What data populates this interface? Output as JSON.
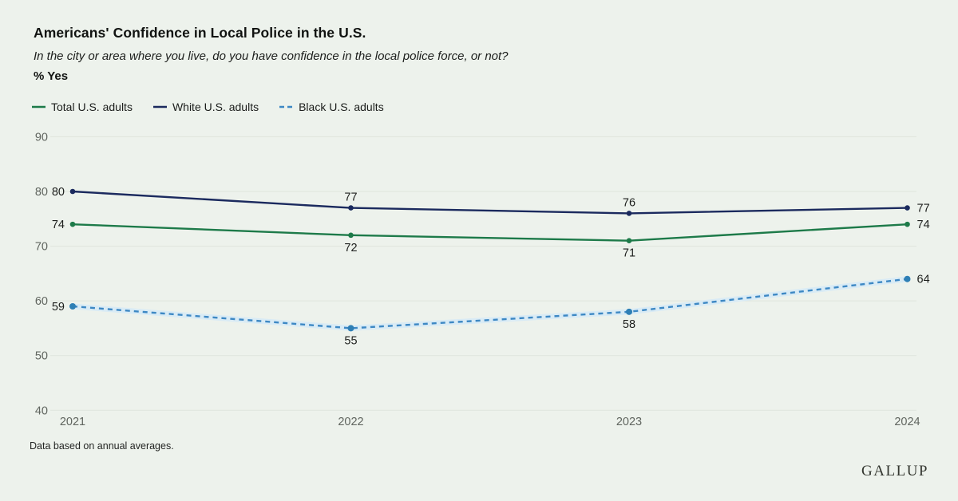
{
  "page": {
    "background": "#edf2ec"
  },
  "header": {
    "title": "Americans' Confidence in Local Police in the U.S.",
    "subtitle": "In the city or area where you live, do you have confidence in the local police force, or not?",
    "metric_label": "% Yes"
  },
  "legend": [
    {
      "label": "Total U.S. adults",
      "color": "#1d7a49",
      "dash": "solid",
      "icon": "green-line-swatch"
    },
    {
      "label": "White U.S. adults",
      "color": "#1b2a5e",
      "dash": "solid",
      "icon": "navy-line-swatch"
    },
    {
      "label": "Black U.S. adults",
      "color": "#3d88c4",
      "dash": "dashed",
      "icon": "blue-dashed-swatch"
    }
  ],
  "chart_data": {
    "type": "line",
    "x": [
      "2021",
      "2022",
      "2023",
      "2024"
    ],
    "series": [
      {
        "name": "Total U.S. adults",
        "values": [
          74,
          72,
          71,
          74
        ],
        "color": "#1d7a49",
        "style": "solid",
        "mid_label_position": "below"
      },
      {
        "name": "White U.S. adults",
        "values": [
          80,
          77,
          76,
          77
        ],
        "color": "#1b2a5e",
        "style": "solid",
        "mid_label_position": "above"
      },
      {
        "name": "Black U.S. adults",
        "values": [
          59,
          55,
          58,
          64
        ],
        "color": "#3d88c4",
        "style": "dashed",
        "mid_label_position": "below",
        "halo_color": "#d9ebf5",
        "dot_color": "#2e7fb5"
      }
    ],
    "title": "Americans' Confidence in Local Police in the U.S.",
    "xlabel": "",
    "ylabel": "% Yes",
    "ylim": [
      40,
      90
    ],
    "yticks": [
      90,
      80,
      70,
      60,
      50,
      40
    ],
    "grid": true,
    "legend_position": "top",
    "colors": {
      "gridline": "#dfe5dd",
      "axis_text": "#60655f",
      "data_label_text": "#1d1f1d"
    }
  },
  "footer": {
    "note": "Data based on annual averages.",
    "brand": "GALLUP"
  }
}
